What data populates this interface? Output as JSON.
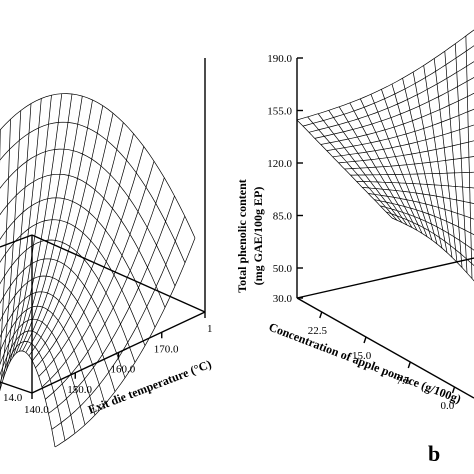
{
  "chart_data": [
    {
      "type": "surface",
      "panel": "a",
      "xlabel": "Exit die temperature (°C)",
      "x_ticks": [
        "140.0",
        "150.0",
        "160.0",
        "170.0",
        "1"
      ],
      "y_ticks": [
        "14.0"
      ],
      "surface": "saddle-shaped response surface; maximum near 155 °C, falling toward both temperature extremes",
      "grid": true
    },
    {
      "type": "surface",
      "panel": "b",
      "panel_label": "b",
      "zlabel_line1": "Total phenolic content",
      "zlabel_line2": "(mg GAE/100g EP)",
      "z_ticks": [
        "30.0",
        "50.0",
        "85.0",
        "120.0",
        "155.0",
        "190.0"
      ],
      "xlabel": "Concentration of apple pomace (g/100g)",
      "x_ticks": [
        "22.5",
        "15.0",
        "7.5",
        "0.0"
      ],
      "zlim": [
        30,
        190
      ],
      "surface": "total phenolic content increases with apple pomace concentration (about 40 at 0.0 up to about 190 at the highest concentration)",
      "grid": true
    }
  ]
}
